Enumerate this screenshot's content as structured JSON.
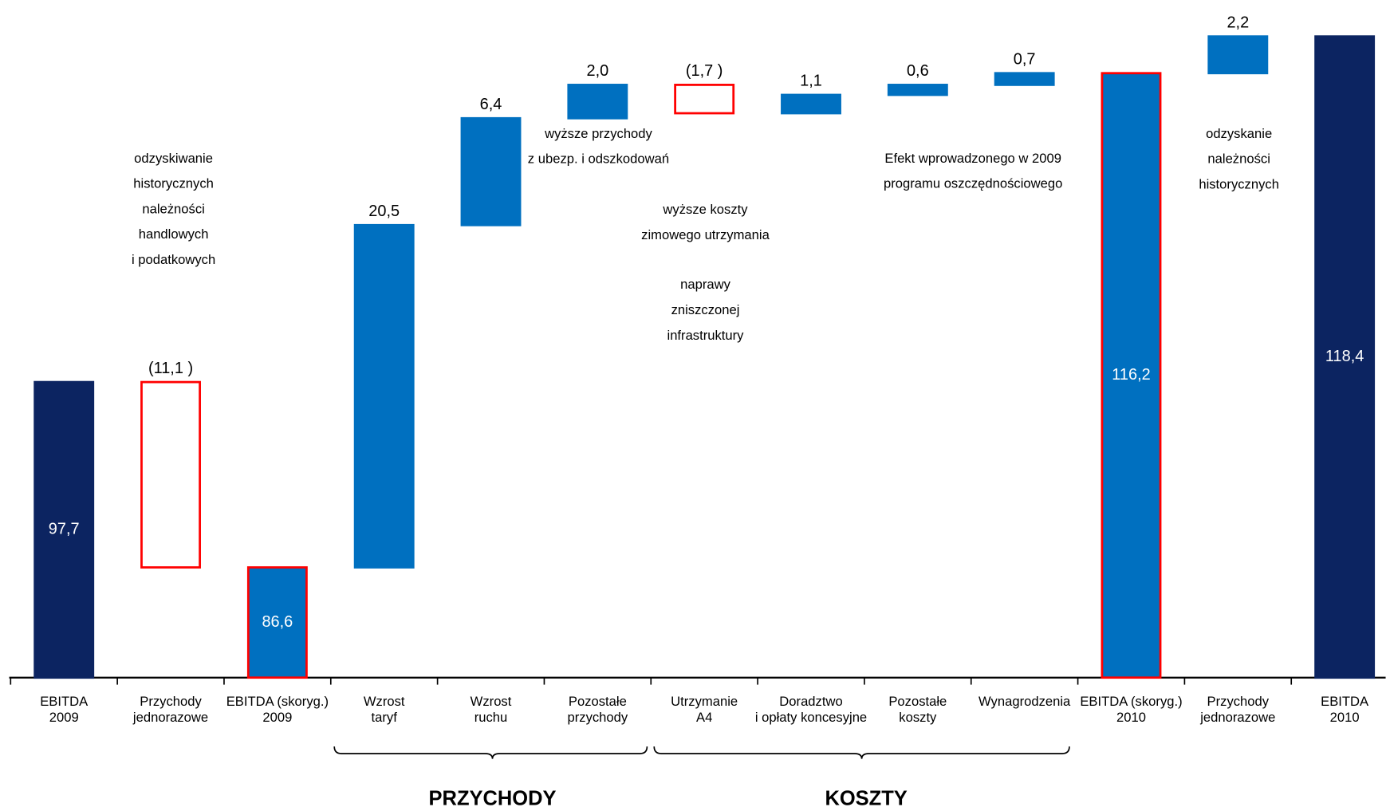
{
  "chart_data": {
    "type": "waterfall",
    "categories": [
      [
        "EBITDA",
        "2009"
      ],
      [
        "Przychody",
        "jednorazowe"
      ],
      [
        "EBITDA (skoryg.)",
        "2009"
      ],
      [
        "Wzrost",
        "taryf"
      ],
      [
        "Wzrost",
        "ruchu"
      ],
      [
        "Pozostałe",
        "przychody"
      ],
      [
        "Utrzymanie",
        "A4"
      ],
      [
        "Doradztwo",
        "i opłaty koncesyjne"
      ],
      [
        "Pozostałe",
        "koszty"
      ],
      [
        "Wynagrodzenia"
      ],
      [
        "EBITDA (skoryg.)",
        "2010"
      ],
      [
        "Przychody",
        "jednorazowe"
      ],
      [
        "EBITDA",
        "2010"
      ]
    ],
    "values": [
      97.7,
      -11.1,
      86.6,
      20.5,
      6.4,
      2.0,
      -1.7,
      1.1,
      0.6,
      0.7,
      116.2,
      2.2,
      118.4
    ],
    "value_labels": [
      "97,7",
      "(11,1 )",
      "86,6",
      "20,5",
      "6,4",
      "2,0",
      "(1,7 )",
      "1,1",
      "0,6",
      "0,7",
      "116,2",
      "2,2",
      "118,4"
    ],
    "measure": [
      "absolute",
      "relative",
      "absolute",
      "relative",
      "relative",
      "relative",
      "relative",
      "relative",
      "relative",
      "relative",
      "absolute",
      "relative",
      "absolute"
    ],
    "colors": [
      "#0c2461",
      "#ffffff",
      "#0070c0",
      "#0070c0",
      "#0070c0",
      "#0070c0",
      "#ffffff",
      "#0070c0",
      "#0070c0",
      "#0070c0",
      "#0070c0",
      "#0070c0",
      "#0c2461"
    ],
    "edgecolors": [
      "#0c2461",
      "#ff0000",
      "#ff0000",
      "#0070c0",
      "#0070c0",
      "#0070c0",
      "#ff0000",
      "#0070c0",
      "#0070c0",
      "#0070c0",
      "#ff0000",
      "#0070c0",
      "#0c2461"
    ],
    "ylim": [
      80,
      120
    ],
    "annotations": [
      [
        "odzyskiwanie",
        "historycznych",
        "należności",
        "handlowych",
        "i podatkowych"
      ],
      [
        "wyższe przychody",
        "z ubezp. i odszkodowań"
      ],
      [
        "wyższe koszty",
        "zimowego utrzymania"
      ],
      [
        "naprawy",
        "zniszczonej",
        "infrastruktury"
      ],
      [
        "Efekt wprowadzonego w 2009",
        "programu oszczędnościowego"
      ],
      [
        "odzyskanie",
        "należności",
        "historycznych"
      ]
    ],
    "groups": [
      "PRZYCHODY",
      "KOSZTY"
    ]
  }
}
